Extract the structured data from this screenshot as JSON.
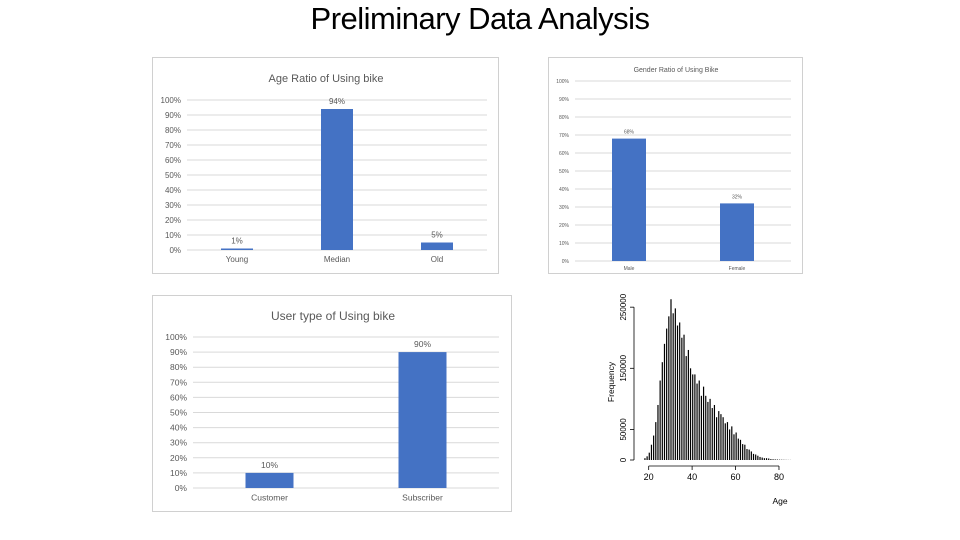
{
  "slide": {
    "title": "Preliminary Data Analysis"
  },
  "colors": {
    "bar": "#4472c4",
    "grid": "#d9d9d9",
    "text": "#595959",
    "hist": "#000000"
  },
  "chart_data": [
    {
      "type": "bar",
      "title": "Age Ratio of Using bike",
      "categories": [
        "Young",
        "Median",
        "Old"
      ],
      "values": [
        1,
        94,
        5
      ],
      "data_labels": [
        "1%",
        "94%",
        "5%"
      ],
      "y_ticks": [
        "0%",
        "10%",
        "20%",
        "30%",
        "40%",
        "50%",
        "60%",
        "70%",
        "80%",
        "90%",
        "100%"
      ],
      "ylim": [
        0,
        100
      ],
      "grid": true
    },
    {
      "type": "bar",
      "title": "Gender Ratio of Using Bike",
      "categories": [
        "Male",
        "Female"
      ],
      "values": [
        68,
        32
      ],
      "data_labels": [
        "68%",
        "32%"
      ],
      "y_ticks": [
        "0%",
        "10%",
        "20%",
        "30%",
        "40%",
        "50%",
        "60%",
        "70%",
        "80%",
        "90%",
        "100%"
      ],
      "ylim": [
        0,
        100
      ],
      "grid": true
    },
    {
      "type": "bar",
      "title": "User type of Using bike",
      "categories": [
        "Customer",
        "Subscriber"
      ],
      "values": [
        10,
        90
      ],
      "data_labels": [
        "10%",
        "90%"
      ],
      "y_ticks": [
        "0%",
        "10%",
        "20%",
        "30%",
        "40%",
        "50%",
        "60%",
        "70%",
        "80%",
        "90%",
        "100%"
      ],
      "ylim": [
        0,
        100
      ],
      "grid": true
    },
    {
      "type": "bar",
      "subtype": "histogram",
      "xlabel": "Age",
      "ylabel": "Frequency",
      "x_ticks": [
        20,
        40,
        60,
        80
      ],
      "y_ticks": [
        0,
        50000,
        150000,
        250000
      ],
      "xlim": [
        16,
        86
      ],
      "ylim": [
        0,
        265000
      ],
      "x": [
        18,
        19,
        20,
        21,
        22,
        23,
        24,
        25,
        26,
        27,
        28,
        29,
        30,
        31,
        32,
        33,
        34,
        35,
        36,
        37,
        38,
        39,
        40,
        41,
        42,
        43,
        44,
        45,
        46,
        47,
        48,
        49,
        50,
        51,
        52,
        53,
        54,
        55,
        56,
        57,
        58,
        59,
        60,
        61,
        62,
        63,
        64,
        65,
        66,
        67,
        68,
        69,
        70,
        71,
        72,
        73,
        74,
        75,
        76,
        77,
        78,
        79,
        80,
        81,
        82,
        83,
        84,
        85
      ],
      "values": [
        3000,
        6000,
        12000,
        25000,
        40000,
        62000,
        90000,
        130000,
        160000,
        190000,
        215000,
        235000,
        263000,
        240000,
        248000,
        220000,
        225000,
        200000,
        205000,
        170000,
        180000,
        150000,
        140000,
        140000,
        125000,
        130000,
        105000,
        120000,
        105000,
        95000,
        100000,
        85000,
        90000,
        70000,
        80000,
        75000,
        70000,
        60000,
        62000,
        50000,
        55000,
        42000,
        45000,
        35000,
        33000,
        26000,
        25000,
        18000,
        17000,
        14000,
        10000,
        9000,
        7000,
        5000,
        4000,
        3000,
        3000,
        2500,
        1500,
        1200,
        1000,
        800,
        600,
        500,
        400,
        300,
        200,
        150
      ]
    }
  ]
}
